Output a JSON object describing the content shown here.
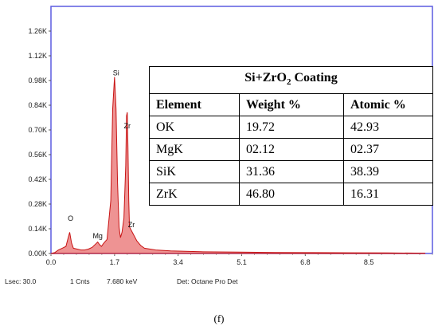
{
  "chart_data": {
    "type": "line",
    "title": "",
    "xlabel": "",
    "ylabel": "",
    "xlim": [
      0.0,
      10.2
    ],
    "ylim": [
      0,
      1400
    ],
    "x_ticks": [
      "0.0",
      "1.7",
      "3.4",
      "5.1",
      "6.8",
      "8.5"
    ],
    "x_tick_values": [
      0.0,
      1.7,
      3.4,
      5.1,
      6.8,
      8.5
    ],
    "y_ticks": [
      "0.00K",
      "0.14K",
      "0.28K",
      "0.42K",
      "0.56K",
      "0.70K",
      "0.84K",
      "0.98K",
      "1.12K",
      "1.26K"
    ],
    "y_tick_values": [
      0,
      140,
      280,
      420,
      560,
      700,
      840,
      980,
      1120,
      1260
    ],
    "grid": false,
    "series_color": "#c81414",
    "series": [
      {
        "x": [
          0.0,
          0.1,
          0.2,
          0.3,
          0.4,
          0.45,
          0.5,
          0.55,
          0.6,
          0.7,
          0.8,
          0.9,
          1.0,
          1.1,
          1.2,
          1.25,
          1.3,
          1.35,
          1.4,
          1.5,
          1.6,
          1.65,
          1.7,
          1.74,
          1.78,
          1.82,
          1.86,
          1.9,
          1.95,
          2.0,
          2.02,
          2.04,
          2.06,
          2.08,
          2.1,
          2.15,
          2.2,
          2.3,
          2.4,
          2.5,
          2.8,
          3.2,
          4.0,
          5.0,
          6.0,
          7.0,
          8.0,
          9.0,
          10.0
        ],
        "y": [
          0,
          5,
          20,
          30,
          40,
          80,
          120,
          60,
          30,
          25,
          20,
          20,
          25,
          35,
          55,
          65,
          50,
          40,
          55,
          80,
          300,
          820,
          1000,
          820,
          400,
          150,
          90,
          120,
          200,
          500,
          780,
          800,
          600,
          300,
          150,
          130,
          110,
          70,
          45,
          30,
          20,
          15,
          10,
          8,
          6,
          5,
          4,
          3,
          2
        ]
      }
    ],
    "peak_labels": [
      {
        "text": "Si",
        "x": 1.74,
        "y": 1010
      },
      {
        "text": "Zr",
        "x": 2.04,
        "y": 710
      },
      {
        "text": "O",
        "x": 0.525,
        "y": 185
      },
      {
        "text": "Mg",
        "x": 1.25,
        "y": 85
      },
      {
        "text": "Zr",
        "x": 2.15,
        "y": 150
      }
    ]
  },
  "status_bar": {
    "lsec": "Lsec: 30.0",
    "cnts": "1 Cnts",
    "kev": "7.680 keV",
    "det": "Det: Octane Pro Det"
  },
  "table": {
    "title_main": "Si+ZrO",
    "title_sub": "2",
    "title_suffix": " Coating",
    "headers": [
      "Element",
      "Weight %",
      "Atomic %"
    ],
    "rows": [
      [
        "OK",
        "19.72",
        "42.93"
      ],
      [
        "MgK",
        "02.12",
        "02.37"
      ],
      [
        "SiK",
        "31.36",
        "38.39"
      ],
      [
        "ZrK",
        "46.80",
        "16.31"
      ]
    ]
  },
  "caption": "(f)"
}
